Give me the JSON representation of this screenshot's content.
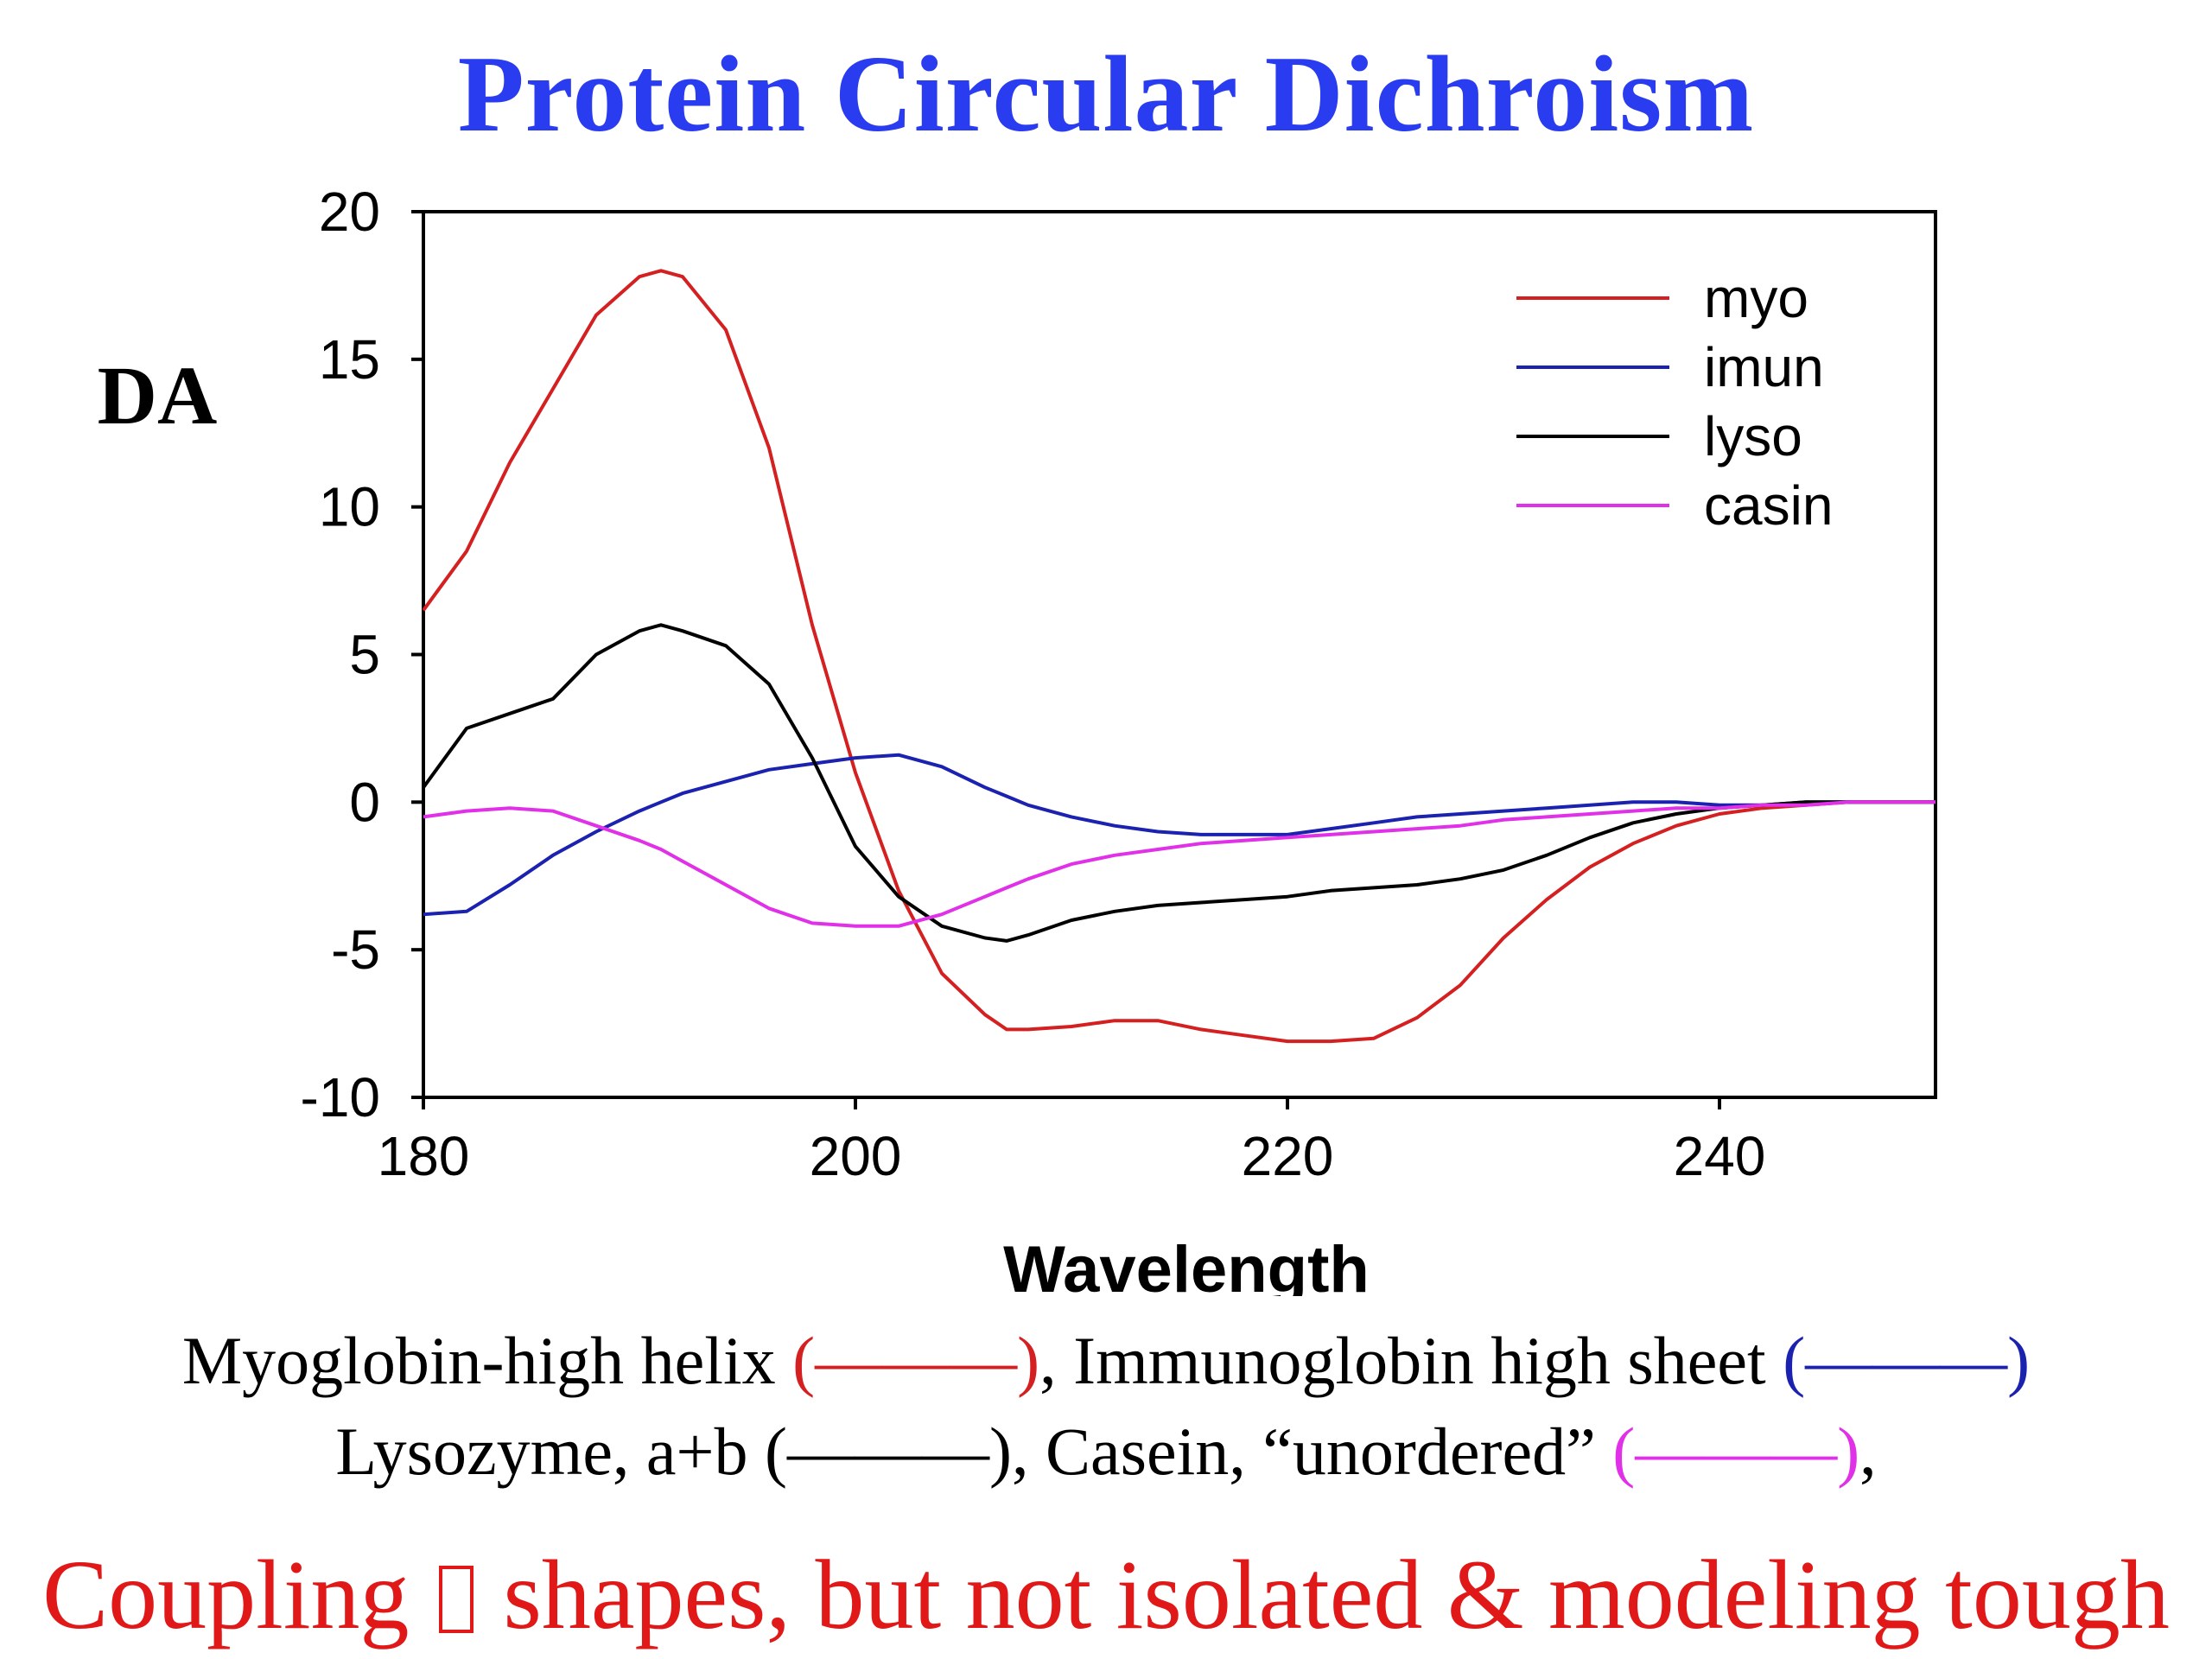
{
  "slide": {
    "title": "Protein Circular Dichroism",
    "caption_line1": {
      "part1": "Myoglobin-high helix ",
      "swatch1": "(———)",
      "part2": ", Immunoglobin high sheet ",
      "swatch2": "(———)"
    },
    "caption_line2": {
      "part1": "Lysozyme, a+b (———), Casein, “unordered” ",
      "swatch": "(———)",
      "part2": ","
    },
    "bottom_line": {
      "part1": "Coupling ",
      "part2": " shapes, but not isolated & modeling tough"
    }
  },
  "colors": {
    "title": "#2a3cf0",
    "bottom_text": "#e01818",
    "myo": "#d42020",
    "imun": "#1c22b0",
    "lyso": "#000000",
    "casin": "#e030e8"
  },
  "chart_data": {
    "type": "line",
    "xlabel": "Wavelength",
    "ylabel": "DA",
    "xlim": [
      180,
      250
    ],
    "ylim": [
      -10,
      20
    ],
    "xticks": [
      "180",
      "200",
      "220",
      "240"
    ],
    "yticks": [
      "20",
      "15",
      "10",
      "5",
      "0",
      "-5",
      "-10"
    ],
    "grid": false,
    "legend_position": "top-right",
    "x": [
      180,
      182,
      184,
      186,
      188,
      190,
      191,
      192,
      194,
      196,
      198,
      200,
      202,
      204,
      206,
      207,
      208,
      210,
      212,
      214,
      216,
      218,
      220,
      222,
      224,
      226,
      228,
      230,
      232,
      234,
      236,
      238,
      240,
      242,
      244,
      246,
      248,
      250
    ],
    "series": [
      {
        "name": "myo",
        "color": "#d42020",
        "values": [
          6.5,
          8.5,
          11.5,
          14,
          16.5,
          17.8,
          18,
          17.8,
          16,
          12,
          6,
          1,
          -3,
          -5.8,
          -7.2,
          -7.7,
          -7.7,
          -7.6,
          -7.4,
          -7.4,
          -7.7,
          -7.9,
          -8.1,
          -8.1,
          -8,
          -7.3,
          -6.2,
          -4.6,
          -3.3,
          -2.2,
          -1.4,
          -0.8,
          -0.4,
          -0.2,
          -0.1,
          0,
          0,
          0
        ]
      },
      {
        "name": "imun",
        "color": "#1c22b0",
        "values": [
          -3.8,
          -3.7,
          -2.8,
          -1.8,
          -1,
          -0.3,
          0,
          0.3,
          0.7,
          1.1,
          1.3,
          1.5,
          1.6,
          1.2,
          0.5,
          0.2,
          -0.1,
          -0.5,
          -0.8,
          -1,
          -1.1,
          -1.1,
          -1.1,
          -0.9,
          -0.7,
          -0.5,
          -0.4,
          -0.3,
          -0.2,
          -0.1,
          0,
          0,
          -0.1,
          -0.1,
          0,
          0,
          0,
          0
        ]
      },
      {
        "name": "lyso",
        "color": "#000000",
        "values": [
          0.5,
          2.5,
          3,
          3.5,
          5,
          5.8,
          6,
          5.8,
          5.3,
          4,
          1.5,
          -1.5,
          -3.2,
          -4.2,
          -4.6,
          -4.7,
          -4.5,
          -4,
          -3.7,
          -3.5,
          -3.4,
          -3.3,
          -3.2,
          -3,
          -2.9,
          -2.8,
          -2.6,
          -2.3,
          -1.8,
          -1.2,
          -0.7,
          -0.4,
          -0.2,
          -0.1,
          0,
          0,
          0,
          0
        ]
      },
      {
        "name": "casin",
        "color": "#e030e8",
        "values": [
          -0.5,
          -0.3,
          -0.2,
          -0.3,
          -0.8,
          -1.3,
          -1.6,
          -2,
          -2.8,
          -3.6,
          -4.1,
          -4.2,
          -4.2,
          -3.8,
          -3.2,
          -2.9,
          -2.6,
          -2.1,
          -1.8,
          -1.6,
          -1.4,
          -1.3,
          -1.2,
          -1.1,
          -1,
          -0.9,
          -0.8,
          -0.6,
          -0.5,
          -0.4,
          -0.3,
          -0.2,
          -0.2,
          -0.1,
          -0.1,
          0,
          0,
          0
        ]
      }
    ]
  }
}
